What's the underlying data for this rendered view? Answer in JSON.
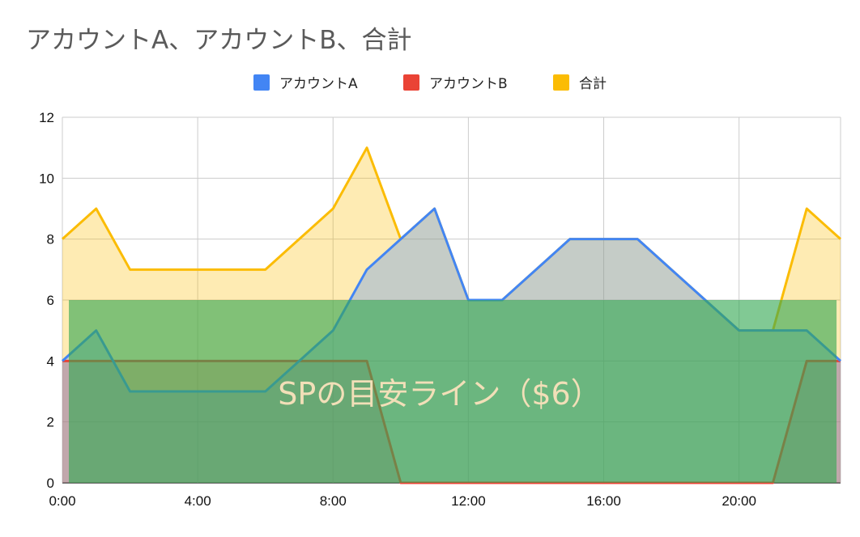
{
  "chart_data": {
    "type": "area",
    "title": "アカウントA、アカウントB、合計",
    "xlabel": "",
    "ylabel": "",
    "x": [
      0,
      1,
      2,
      3,
      4,
      5,
      6,
      7,
      8,
      9,
      10,
      11,
      12,
      13,
      14,
      15,
      16,
      17,
      18,
      19,
      20,
      21,
      22,
      23
    ],
    "x_ticks": [
      "0:00",
      "4:00",
      "8:00",
      "12:00",
      "16:00",
      "20:00"
    ],
    "x_tick_values": [
      0,
      4,
      8,
      12,
      16,
      20
    ],
    "xlim": [
      0,
      23
    ],
    "ylim": [
      0,
      12
    ],
    "y_ticks": [
      0,
      2,
      4,
      6,
      8,
      10,
      12
    ],
    "grid": true,
    "legend_position": "top-center",
    "series": [
      {
        "name": "アカウントA",
        "color": "#4285f4",
        "values": [
          4,
          5,
          3,
          3,
          3,
          3,
          3,
          4,
          5,
          7,
          8,
          9,
          6,
          6,
          7,
          8,
          8,
          8,
          7,
          6,
          5,
          5,
          5,
          4
        ]
      },
      {
        "name": "アカウントB",
        "color": "#ea4335",
        "values": [
          4,
          4,
          4,
          4,
          4,
          4,
          4,
          4,
          4,
          4,
          0,
          0,
          0,
          0,
          0,
          0,
          0,
          0,
          0,
          0,
          0,
          0,
          4,
          4
        ]
      },
      {
        "name": "合計",
        "color": "#fbbc04",
        "values": [
          8,
          9,
          7,
          7,
          7,
          7,
          7,
          8,
          9,
          11,
          8,
          9,
          6,
          6,
          7,
          8,
          8,
          8,
          7,
          6,
          5,
          5,
          9,
          8
        ]
      }
    ],
    "annotation": {
      "label": "SPの目安ライン（$6）",
      "value": 6,
      "color": "#34a853"
    }
  }
}
